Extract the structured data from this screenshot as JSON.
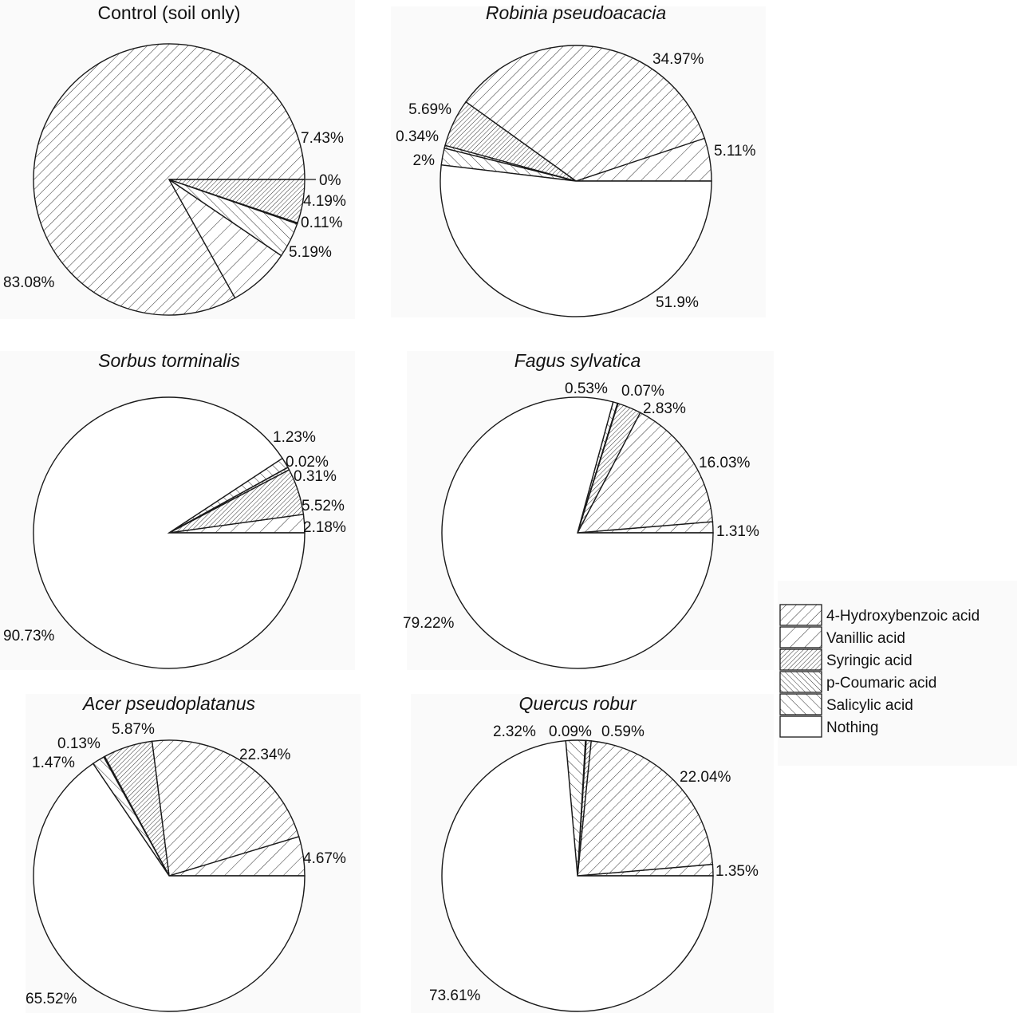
{
  "patterns": {
    "4-Hydroxybenzoic acid": {
      "angle": 45,
      "spacing": 9,
      "stroke": 0.9
    },
    "Vanillic acid": {
      "angle": 45,
      "spacing": 13,
      "stroke": 0.9
    },
    "Syringic acid": {
      "angle": 45,
      "spacing": 4,
      "stroke": 0.9
    },
    "p-Coumaric acid": {
      "angle": -45,
      "spacing": 5,
      "stroke": 0.9
    },
    "Salicylic acid": {
      "angle": -45,
      "spacing": 9,
      "stroke": 0.9
    },
    "Nothing": null
  },
  "colors": {
    "stroke": "#1a1a1a",
    "background": "#ffffff",
    "panel_tint": "#fafafa"
  },
  "chart_data": [
    {
      "type": "pie",
      "title": "Control (soil only)",
      "title_italic": false,
      "slices": [
        {
          "category": "4-Hydroxybenzoic acid",
          "value": 83.08,
          "label": "83.08%"
        },
        {
          "category": "Vanillic acid",
          "value": 7.43,
          "label": "7.43%"
        },
        {
          "category": "Nothing",
          "value": 0,
          "label": "0%"
        },
        {
          "category": "Salicylic acid",
          "value": 4.19,
          "label": "4.19%"
        },
        {
          "category": "p-Coumaric acid",
          "value": 0.11,
          "label": "0.11%"
        },
        {
          "category": "Syringic acid",
          "value": 5.19,
          "label": "5.19%"
        }
      ]
    },
    {
      "type": "pie",
      "title": "Robinia pseudoacacia",
      "title_italic": true,
      "slices": [
        {
          "category": "Vanillic acid",
          "value": 5.11,
          "label": "5.11%"
        },
        {
          "category": "4-Hydroxybenzoic acid",
          "value": 34.97,
          "label": "34.97%"
        },
        {
          "category": "Syringic acid",
          "value": 5.69,
          "label": "5.69%"
        },
        {
          "category": "p-Coumaric acid",
          "value": 0.34,
          "label": "0.34%"
        },
        {
          "category": "Salicylic acid",
          "value": 2,
          "label": "2%"
        },
        {
          "category": "Nothing",
          "value": 51.9,
          "label": "51.9%"
        }
      ]
    },
    {
      "type": "pie",
      "title": "Sorbus torminalis",
      "title_italic": true,
      "slices": [
        {
          "category": "Vanillic acid",
          "value": 2.18,
          "label": "2.18%"
        },
        {
          "category": "Syringic acid",
          "value": 5.52,
          "label": "5.52%"
        },
        {
          "category": "p-Coumaric acid",
          "value": 0.31,
          "label": "0.31%"
        },
        {
          "category": "4-Hydroxybenzoic acid",
          "value": 0.02,
          "label": "0.02%"
        },
        {
          "category": "Salicylic acid",
          "value": 1.23,
          "label": "1.23%"
        },
        {
          "category": "Nothing",
          "value": 90.73,
          "label": "90.73%"
        }
      ]
    },
    {
      "type": "pie",
      "title": "Fagus sylvatica",
      "title_italic": true,
      "slices": [
        {
          "category": "Vanillic acid",
          "value": 1.31,
          "label": "1.31%"
        },
        {
          "category": "4-Hydroxybenzoic acid",
          "value": 16.03,
          "label": "16.03%"
        },
        {
          "category": "Syringic acid",
          "value": 2.83,
          "label": "2.83%"
        },
        {
          "category": "p-Coumaric acid",
          "value": 0.07,
          "label": "0.07%"
        },
        {
          "category": "Salicylic acid",
          "value": 0.53,
          "label": "0.53%"
        },
        {
          "category": "Nothing",
          "value": 79.22,
          "label": "79.22%"
        }
      ]
    },
    {
      "type": "pie",
      "title": "Acer pseudoplatanus",
      "title_italic": true,
      "slices": [
        {
          "category": "Vanillic acid",
          "value": 4.67,
          "label": "4.67%"
        },
        {
          "category": "4-Hydroxybenzoic acid",
          "value": 22.34,
          "label": "22.34%"
        },
        {
          "category": "Syringic acid",
          "value": 5.87,
          "label": "5.87%"
        },
        {
          "category": "p-Coumaric acid",
          "value": 0.13,
          "label": "0.13%"
        },
        {
          "category": "Salicylic acid",
          "value": 1.47,
          "label": "1.47%"
        },
        {
          "category": "Nothing",
          "value": 65.52,
          "label": "65.52%"
        }
      ]
    },
    {
      "type": "pie",
      "title": "Quercus robur",
      "title_italic": true,
      "slices": [
        {
          "category": "Vanillic acid",
          "value": 1.35,
          "label": "1.35%"
        },
        {
          "category": "4-Hydroxybenzoic acid",
          "value": 22.04,
          "label": "22.04%"
        },
        {
          "category": "Syringic acid",
          "value": 0.59,
          "label": "0.59%"
        },
        {
          "category": "p-Coumaric acid",
          "value": 0.09,
          "label": "0.09%"
        },
        {
          "category": "Salicylic acid",
          "value": 2.32,
          "label": "2.32%"
        },
        {
          "category": "Nothing",
          "value": 73.61,
          "label": "73.61%"
        }
      ]
    }
  ],
  "legend": [
    "4-Hydroxybenzoic acid",
    "Vanillic acid",
    "Syringic acid",
    "p-Coumaric acid",
    "Salicylic acid",
    "Nothing"
  ]
}
